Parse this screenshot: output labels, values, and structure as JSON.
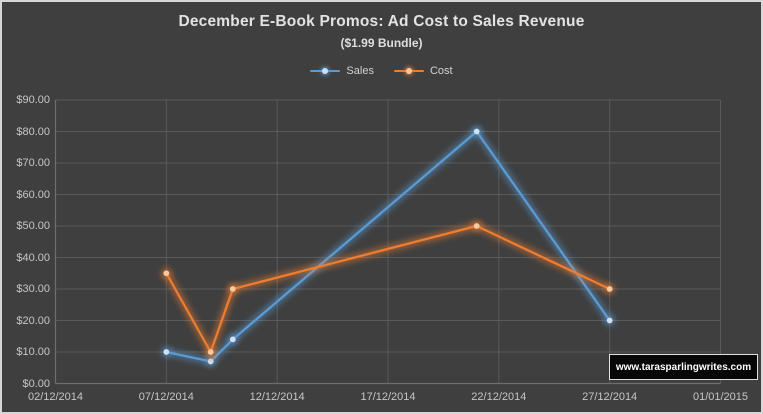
{
  "chart": {
    "title": "December E-Book Promos: Ad Cost to Sales Revenue",
    "subtitle": "($1.99 Bundle)"
  },
  "watermark": {
    "text": "www.tarasparlingwrites.com"
  },
  "colors": {
    "background": "#3f3f3f",
    "frame_border": "#d6d6d6",
    "gridline": "#5a5a5a",
    "axis_line": "#6e6e6e",
    "title_text": "#e3e3e3",
    "tick_text": "#c6c6c6",
    "sales_blue": "#5B9BD5",
    "cost_orange": "#ED7D31"
  },
  "chart_data": {
    "type": "line",
    "title": "December E-Book Promos: Ad Cost to Sales Revenue",
    "subtitle": "($1.99 Bundle)",
    "xlabel": "",
    "ylabel": "",
    "ylim": [
      0,
      90
    ],
    "grid": true,
    "legend_position": "top-center",
    "x_axis_span_days": 30,
    "x_ticks": [
      {
        "day": 0,
        "label": "02/12/2014"
      },
      {
        "day": 5,
        "label": "07/12/2014"
      },
      {
        "day": 10,
        "label": "12/12/2014"
      },
      {
        "day": 15,
        "label": "17/12/2014"
      },
      {
        "day": 20,
        "label": "22/12/2014"
      },
      {
        "day": 25,
        "label": "27/12/2014"
      },
      {
        "day": 30,
        "label": "01/01/2015"
      }
    ],
    "y_ticks": [
      {
        "value": 90,
        "label": "$90.00"
      },
      {
        "value": 80,
        "label": "$80.00"
      },
      {
        "value": 70,
        "label": "$70.00"
      },
      {
        "value": 60,
        "label": "$60.00"
      },
      {
        "value": 50,
        "label": "$50.00"
      },
      {
        "value": 40,
        "label": "$40.00"
      },
      {
        "value": 30,
        "label": "$30.00"
      },
      {
        "value": 20,
        "label": "$20.00"
      },
      {
        "value": 10,
        "label": "$10.00"
      },
      {
        "value": 0,
        "label": "$0.00"
      }
    ],
    "series": [
      {
        "name": "Sales",
        "color": "#5B9BD5",
        "marker_color": "#cfe0f1",
        "points": [
          {
            "date": "07/12/2014",
            "day": 5,
            "value": 10
          },
          {
            "date": "09/12/2014",
            "day": 7,
            "value": 7
          },
          {
            "date": "10/12/2014",
            "day": 8,
            "value": 14
          },
          {
            "date": "21/12/2014",
            "day": 19,
            "value": 80
          },
          {
            "date": "27/12/2014",
            "day": 25,
            "value": 20
          }
        ]
      },
      {
        "name": "Cost",
        "color": "#ED7D31",
        "marker_color": "#f6c9a0",
        "points": [
          {
            "date": "07/12/2014",
            "day": 5,
            "value": 35
          },
          {
            "date": "09/12/2014",
            "day": 7,
            "value": 10
          },
          {
            "date": "10/12/2014",
            "day": 8,
            "value": 30
          },
          {
            "date": "21/12/2014",
            "day": 19,
            "value": 50
          },
          {
            "date": "27/12/2014",
            "day": 25,
            "value": 30
          }
        ]
      }
    ]
  }
}
